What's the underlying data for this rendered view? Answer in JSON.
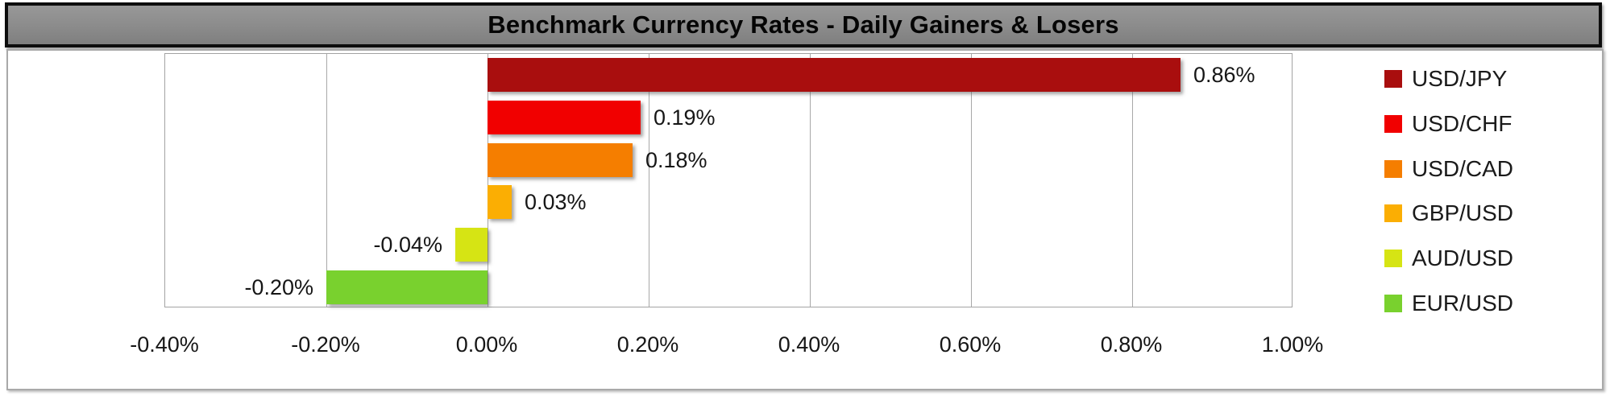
{
  "title": "Benchmark Currency Rates - Daily Gainers & Losers",
  "colors": {
    "title_bg": "#8b8b8b",
    "title_border": "#0d0d0d",
    "title_text": "#050505",
    "chart_border": "#a9a9a9",
    "gridline": "#a8a8a8",
    "axis_text": "#161616",
    "background": "#ffffff"
  },
  "chart_data": {
    "type": "bar",
    "orientation": "horizontal",
    "title": "Benchmark Currency Rates - Daily Gainers & Losers",
    "categories": [
      "USD/JPY",
      "USD/CHF",
      "USD/CAD",
      "GBP/USD",
      "AUD/USD",
      "EUR/USD"
    ],
    "values": [
      0.86,
      0.19,
      0.18,
      0.03,
      -0.04,
      -0.2
    ],
    "value_labels": [
      "0.86%",
      "0.19%",
      "0.18%",
      "0.03%",
      "-0.04%",
      "-0.20%"
    ],
    "bar_colors": [
      "#a90e0e",
      "#f10000",
      "#f57e00",
      "#fbae03",
      "#d6e414",
      "#79d12e"
    ],
    "xlabel": "",
    "ylabel": "",
    "xlim": [
      -0.4,
      1.0
    ],
    "x_tick_labels": [
      "-0.40%",
      "-0.20%",
      "0.00%",
      "0.20%",
      "0.40%",
      "0.60%",
      "0.80%",
      "1.00%"
    ],
    "x_tick_values": [
      -0.4,
      -0.2,
      0.0,
      0.2,
      0.4,
      0.6,
      0.8,
      1.0
    ],
    "grid": "vertical-on",
    "legend_position": "right",
    "data_label_position": "outside-end"
  },
  "legend": {
    "items": [
      {
        "label": "USD/JPY",
        "color": "#a90e0e"
      },
      {
        "label": "USD/CHF",
        "color": "#f10000"
      },
      {
        "label": "USD/CAD",
        "color": "#f57e00"
      },
      {
        "label": "GBP/USD",
        "color": "#fbae03"
      },
      {
        "label": "AUD/USD",
        "color": "#d6e414"
      },
      {
        "label": "EUR/USD",
        "color": "#79d12e"
      }
    ]
  }
}
